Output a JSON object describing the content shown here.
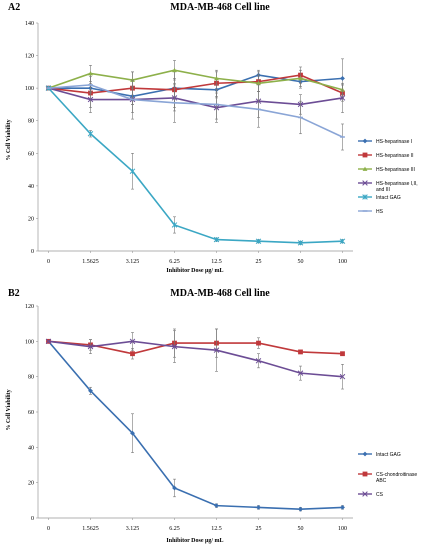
{
  "chart_data": [
    {
      "type": "line",
      "panel_label": "A2",
      "title": "MDA-MB-468 Cell line",
      "xlabel": "Inhibitor Dose μg/ mL",
      "ylabel": "% Cell Viability",
      "categories": [
        "0",
        "1.5625",
        "3.125",
        "6.25",
        "12.5",
        "25",
        "50",
        "100"
      ],
      "ylim": [
        0,
        140
      ],
      "yticks": [
        0,
        20,
        40,
        60,
        80,
        100,
        120,
        140
      ],
      "grid": false,
      "legend_position": "right",
      "series": [
        {
          "name": "HS-heparinase I",
          "color": "#3a6fb0",
          "marker": "diamond",
          "values": [
            100,
            100,
            95,
            100,
            99,
            108,
            104,
            106
          ],
          "errors": [
            0,
            3,
            5,
            6,
            5,
            3,
            4,
            12
          ]
        },
        {
          "name": "HS-heparinase II",
          "color": "#c0393b",
          "marker": "square",
          "values": [
            100,
            97,
            100,
            99,
            103,
            104,
            108,
            97
          ],
          "errors": [
            0,
            12,
            10,
            11,
            8,
            6,
            5,
            5
          ]
        },
        {
          "name": "HS-heparinase III",
          "color": "#8db04a",
          "marker": "triangle",
          "values": [
            100,
            109,
            105,
            111,
            106,
            103,
            106,
            99
          ],
          "errors": [
            0,
            5,
            5,
            6,
            4,
            5,
            5,
            3
          ]
        },
        {
          "name": "HS-heparinase I,II, and III",
          "color": "#6c4d95",
          "marker": "x",
          "values": [
            100,
            93,
            93,
            94,
            88,
            92,
            90,
            94
          ],
          "errors": [
            0,
            5,
            8,
            8,
            9,
            10,
            6,
            9
          ]
        },
        {
          "name": "Intact GAG",
          "color": "#3ba7c4",
          "marker": "star",
          "values": [
            100,
            72,
            49,
            16,
            7,
            6,
            5,
            6
          ],
          "errors": [
            0,
            2,
            11,
            5,
            1,
            1,
            1,
            1
          ]
        },
        {
          "name": "HS",
          "color": "#8aa5d6",
          "marker": "dash",
          "values": [
            100,
            102,
            93,
            91,
            90,
            87,
            82,
            70
          ],
          "errors": [
            0,
            5,
            12,
            12,
            9,
            11,
            10,
            8
          ]
        }
      ]
    },
    {
      "type": "line",
      "panel_label": "B2",
      "title": "MDA-MB-468 Cell line",
      "xlabel": "Inhibitor Dose μg/ mL",
      "ylabel": "% Cell Viability",
      "categories": [
        "0",
        "1.5625",
        "3.125",
        "6.25",
        "12.5",
        "25",
        "50",
        "100"
      ],
      "ylim": [
        0,
        120
      ],
      "yticks": [
        0,
        20,
        40,
        60,
        80,
        100,
        120
      ],
      "grid": false,
      "legend_position": "right",
      "series": [
        {
          "name": "Intact GAG",
          "color": "#3a6fb0",
          "marker": "diamond",
          "values": [
            100,
            72,
            48,
            17,
            7,
            6,
            5,
            6
          ],
          "errors": [
            0,
            2,
            11,
            5,
            1,
            1,
            1,
            1
          ]
        },
        {
          "name": "CS-chondroitinase ABC",
          "color": "#c0393b",
          "marker": "square",
          "values": [
            100,
            98,
            93,
            99,
            99,
            99,
            94,
            93
          ],
          "errors": [
            0,
            3,
            3,
            8,
            8,
            3,
            1,
            1
          ]
        },
        {
          "name": "CS",
          "color": "#6c4d95",
          "marker": "x",
          "values": [
            100,
            97,
            100,
            97,
            95,
            89,
            82,
            80
          ],
          "errors": [
            0,
            4,
            5,
            9,
            12,
            4,
            4,
            7
          ]
        }
      ]
    }
  ]
}
